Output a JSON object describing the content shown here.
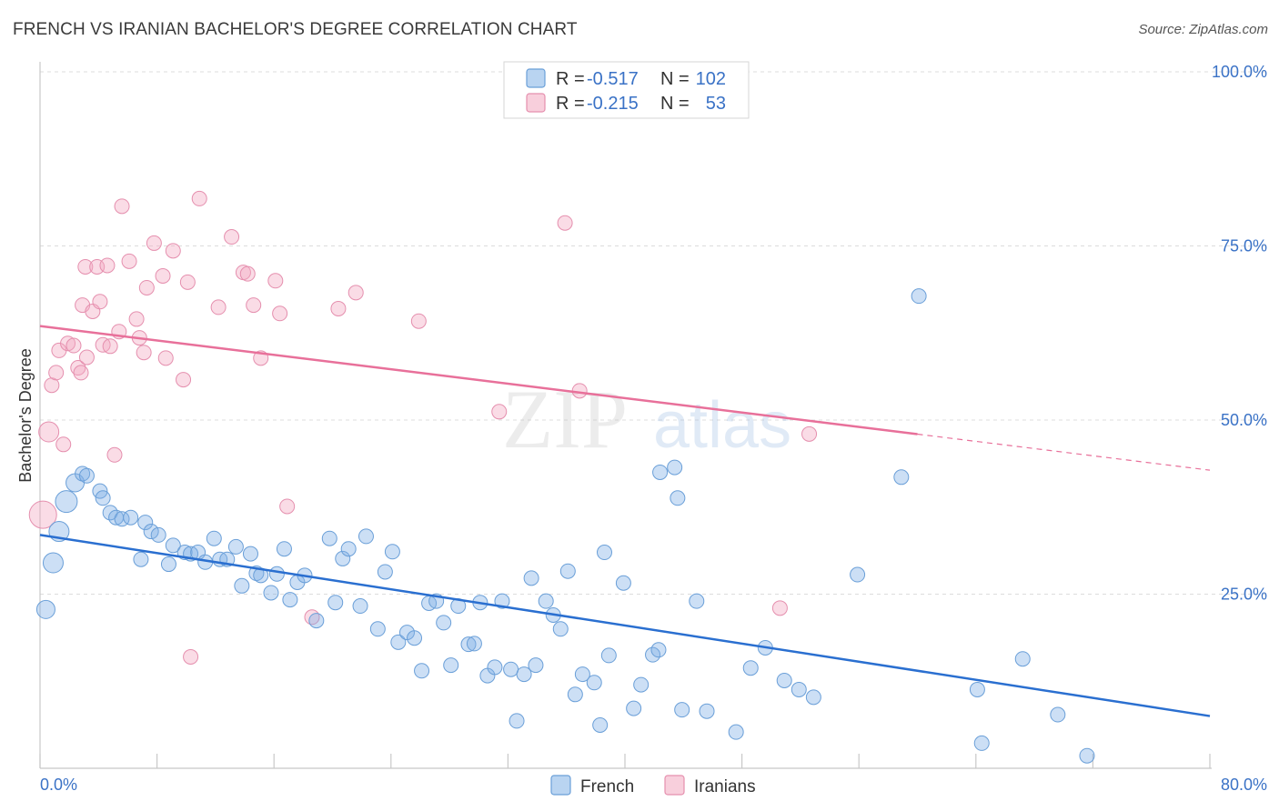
{
  "title": "FRENCH VS IRANIAN BACHELOR'S DEGREE CORRELATION CHART",
  "source": "Source: ZipAtlas.com",
  "watermark": "ZIPatlas",
  "chart_data": {
    "type": "scatter",
    "xlabel": "",
    "ylabel": "Bachelor's Degree",
    "xlim": [
      0,
      80
    ],
    "ylim": [
      0,
      100
    ],
    "x_tick_labels": [
      "0.0%",
      "80.0%"
    ],
    "y_ticks": [
      25,
      50,
      75,
      100
    ],
    "y_tick_labels": [
      "25.0%",
      "50.0%",
      "75.0%",
      "100.0%"
    ],
    "grid": true,
    "legend": {
      "position": "top-center",
      "entries": [
        {
          "name": "French",
          "r_label": "R =",
          "r_value": "-0.517",
          "n_label": "N =",
          "n_value": "102",
          "color": "#7fb0e6"
        },
        {
          "name": "Iranians",
          "r_label": "R =",
          "r_value": "-0.215",
          "n_label": "N =",
          "n_value": "53",
          "color": "#f3a8c0"
        }
      ]
    },
    "series": [
      {
        "name": "French",
        "color": "#7fb0e6",
        "line_color": "#2a6fd0",
        "trend": {
          "x": [
            0,
            80
          ],
          "y": [
            33.5,
            7.5
          ],
          "solid_until": 80
        },
        "points": [
          [
            0.4,
            22.8
          ],
          [
            0.9,
            29.5
          ],
          [
            1.3,
            34
          ],
          [
            1.8,
            38.3
          ],
          [
            2.4,
            41
          ],
          [
            2.9,
            42.3
          ],
          [
            3.2,
            42
          ],
          [
            4.1,
            39.8
          ],
          [
            4.3,
            38.8
          ],
          [
            4.8,
            36.7
          ],
          [
            5.2,
            36
          ],
          [
            5.6,
            35.8
          ],
          [
            6.2,
            36
          ],
          [
            6.9,
            30
          ],
          [
            7.2,
            35.3
          ],
          [
            7.6,
            34
          ],
          [
            8.1,
            33.5
          ],
          [
            8.8,
            29.3
          ],
          [
            9.1,
            32
          ],
          [
            9.9,
            31
          ],
          [
            10.3,
            30.8
          ],
          [
            10.8,
            31
          ],
          [
            11.3,
            29.6
          ],
          [
            11.9,
            33
          ],
          [
            12.3,
            30
          ],
          [
            12.8,
            30
          ],
          [
            13.4,
            31.8
          ],
          [
            13.8,
            26.2
          ],
          [
            14.4,
            30.8
          ],
          [
            14.8,
            28
          ],
          [
            15.1,
            27.7
          ],
          [
            15.8,
            25.2
          ],
          [
            16.2,
            27.9
          ],
          [
            16.7,
            31.5
          ],
          [
            17.1,
            24.2
          ],
          [
            17.6,
            26.7
          ],
          [
            18.1,
            27.7
          ],
          [
            18.9,
            21.2
          ],
          [
            19.8,
            33
          ],
          [
            20.2,
            23.8
          ],
          [
            20.7,
            30.1
          ],
          [
            21.1,
            31.5
          ],
          [
            21.9,
            23.3
          ],
          [
            22.3,
            33.3
          ],
          [
            23.1,
            20
          ],
          [
            23.6,
            28.2
          ],
          [
            24.1,
            31.1
          ],
          [
            24.5,
            18.1
          ],
          [
            25.1,
            19.5
          ],
          [
            25.6,
            18.7
          ],
          [
            26.1,
            14
          ],
          [
            26.6,
            23.7
          ],
          [
            27.1,
            24
          ],
          [
            27.6,
            20.9
          ],
          [
            28.1,
            14.8
          ],
          [
            28.6,
            23.3
          ],
          [
            29.3,
            17.8
          ],
          [
            29.7,
            17.9
          ],
          [
            30.1,
            23.8
          ],
          [
            30.6,
            13.3
          ],
          [
            31.1,
            14.5
          ],
          [
            31.6,
            24
          ],
          [
            32.2,
            14.2
          ],
          [
            32.6,
            6.8
          ],
          [
            33.1,
            13.5
          ],
          [
            33.6,
            27.3
          ],
          [
            33.9,
            14.8
          ],
          [
            34.6,
            24
          ],
          [
            35.1,
            22
          ],
          [
            35.6,
            20
          ],
          [
            36.1,
            28.3
          ],
          [
            36.6,
            10.6
          ],
          [
            37.1,
            13.5
          ],
          [
            37.9,
            12.3
          ],
          [
            38.3,
            6.2
          ],
          [
            38.6,
            31
          ],
          [
            38.9,
            16.2
          ],
          [
            39.9,
            26.6
          ],
          [
            40.6,
            8.6
          ],
          [
            41.1,
            12
          ],
          [
            41.9,
            16.3
          ],
          [
            42.3,
            17
          ],
          [
            42.4,
            42.5
          ],
          [
            43.4,
            43.2
          ],
          [
            43.6,
            38.8
          ],
          [
            43.9,
            8.4
          ],
          [
            44.9,
            24
          ],
          [
            45.6,
            8.2
          ],
          [
            47.6,
            5.2
          ],
          [
            48.6,
            14.4
          ],
          [
            49.6,
            17.3
          ],
          [
            50.9,
            12.6
          ],
          [
            51.9,
            11.3
          ],
          [
            52.9,
            10.2
          ],
          [
            55.9,
            27.8
          ],
          [
            58.9,
            41.8
          ],
          [
            60.1,
            67.8
          ],
          [
            64.1,
            11.3
          ],
          [
            64.4,
            3.6
          ],
          [
            67.2,
            15.7
          ],
          [
            69.6,
            7.7
          ],
          [
            71.6,
            1.8
          ]
        ]
      },
      {
        "name": "Iranians",
        "color": "#f3a8c0",
        "line_color": "#e8709a",
        "trend": {
          "x": [
            0,
            80
          ],
          "y": [
            63.5,
            42.8
          ],
          "solid_until": 60
        },
        "points": [
          [
            0.2,
            36.4
          ],
          [
            0.6,
            48.3
          ],
          [
            0.8,
            55
          ],
          [
            1.1,
            56.8
          ],
          [
            1.3,
            60
          ],
          [
            1.6,
            46.5
          ],
          [
            1.9,
            61
          ],
          [
            2.3,
            60.7
          ],
          [
            2.6,
            57.5
          ],
          [
            2.8,
            56.8
          ],
          [
            2.9,
            66.5
          ],
          [
            3.1,
            72
          ],
          [
            3.2,
            59
          ],
          [
            3.6,
            65.6
          ],
          [
            3.9,
            72
          ],
          [
            4.1,
            67
          ],
          [
            4.3,
            60.8
          ],
          [
            4.6,
            72.2
          ],
          [
            4.8,
            60.6
          ],
          [
            5.1,
            45
          ],
          [
            5.4,
            62.7
          ],
          [
            5.6,
            80.7
          ],
          [
            6.1,
            72.8
          ],
          [
            6.6,
            64.5
          ],
          [
            6.8,
            61.8
          ],
          [
            7.1,
            59.7
          ],
          [
            7.3,
            69
          ],
          [
            7.8,
            75.4
          ],
          [
            8.4,
            70.7
          ],
          [
            8.6,
            58.9
          ],
          [
            9.1,
            74.3
          ],
          [
            9.8,
            55.8
          ],
          [
            10.1,
            69.8
          ],
          [
            10.3,
            16
          ],
          [
            10.9,
            81.8
          ],
          [
            12.2,
            66.2
          ],
          [
            13.1,
            76.3
          ],
          [
            13.9,
            71.2
          ],
          [
            14.2,
            71
          ],
          [
            14.6,
            66.5
          ],
          [
            15.1,
            58.9
          ],
          [
            16.1,
            70
          ],
          [
            16.4,
            65.3
          ],
          [
            16.9,
            37.6
          ],
          [
            18.6,
            21.7
          ],
          [
            20.4,
            66
          ],
          [
            21.6,
            68.3
          ],
          [
            25.9,
            64.2
          ],
          [
            31.4,
            51.2
          ],
          [
            35.9,
            78.3
          ],
          [
            36.9,
            54.2
          ],
          [
            50.6,
            23
          ],
          [
            52.6,
            48
          ]
        ]
      }
    ]
  }
}
